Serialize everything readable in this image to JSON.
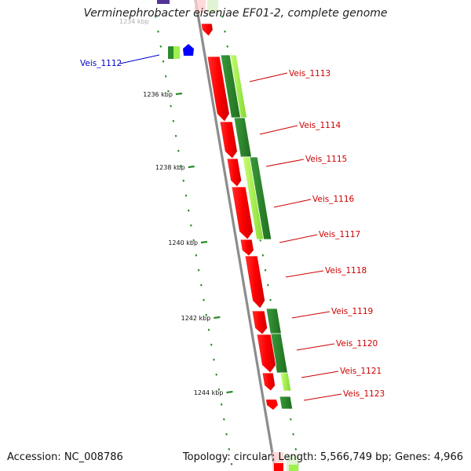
{
  "title": "Verminephrobacter eiseniae EF01-2, complete genome",
  "faded_tick_text": "1234 kbp",
  "footer": {
    "accession": "Accession: NC_008786",
    "summary": "Topology: circular; Length: 5,566,749 bp; Genes: 4,966"
  },
  "colors": {
    "backbone": "#8c8c8c",
    "gene_red": "#ff0000",
    "gene_dark_green": "#2e8b2e",
    "gene_light_green": "#a0f050",
    "gene_blue": "#0000ff",
    "gene_purple": "#553399",
    "tick_green": "#2a8a2a",
    "label_red": "#cc0000",
    "label_blue": "#0000cc"
  },
  "ticks": [
    {
      "label": "1236 kbp"
    },
    {
      "label": "1238 kbp"
    },
    {
      "label": "1240 kbp"
    },
    {
      "label": "1242 kbp"
    },
    {
      "label": "1244 kbp"
    }
  ],
  "genes": [
    {
      "label": "Veis_1112",
      "color": "blue"
    },
    {
      "label": "Veis_1113",
      "color": "red"
    },
    {
      "label": "Veis_1114",
      "color": "red"
    },
    {
      "label": "Veis_1115",
      "color": "red"
    },
    {
      "label": "Veis_1116",
      "color": "red"
    },
    {
      "label": "Veis_1117",
      "color": "red"
    },
    {
      "label": "Veis_1118",
      "color": "red"
    },
    {
      "label": "Veis_1119",
      "color": "red"
    },
    {
      "label": "Veis_1120",
      "color": "red"
    },
    {
      "label": "Veis_1121",
      "color": "red"
    },
    {
      "label": "Veis_1123",
      "color": "red"
    }
  ]
}
